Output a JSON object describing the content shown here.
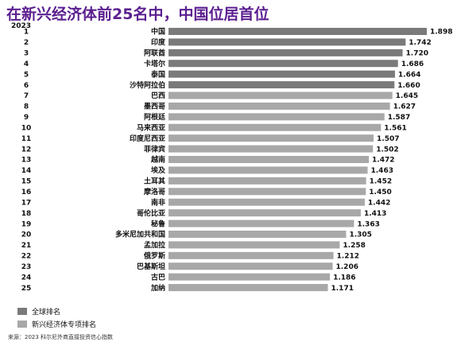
{
  "title": "在新兴经济体前25名中，中国位居首位",
  "year_label": "2023",
  "source": "来源：2023 科尔尼外商直接投资信心指数",
  "legend": [
    {
      "label": "全球排名",
      "color": "#7a7a7a"
    },
    {
      "label": "新兴经济体专项排名",
      "color": "#a8a8a8"
    }
  ],
  "chart_data": {
    "type": "bar",
    "orientation": "horizontal",
    "categories": [
      "中国",
      "印度",
      "阿联酋",
      "卡塔尔",
      "泰国",
      "沙特阿拉伯",
      "巴西",
      "墨西哥",
      "阿根廷",
      "马来西亚",
      "印度尼西亚",
      "菲律宾",
      "越南",
      "埃及",
      "土耳其",
      "摩洛哥",
      "南非",
      "哥伦比亚",
      "秘鲁",
      "多米尼加共和国",
      "孟加拉",
      "俄罗斯",
      "巴基斯坦",
      "古巴",
      "加纳"
    ],
    "ranks": [
      "1",
      "2",
      "3",
      "4",
      "5",
      "6",
      "7",
      "8",
      "9",
      "10",
      "11",
      "12",
      "13",
      "14",
      "15",
      "16",
      "17",
      "18",
      "19",
      "20",
      "21",
      "22",
      "23",
      "24",
      "25"
    ],
    "values": [
      1.898,
      1.742,
      1.72,
      1.686,
      1.664,
      1.66,
      1.645,
      1.627,
      1.587,
      1.561,
      1.507,
      1.502,
      1.472,
      1.463,
      1.452,
      1.45,
      1.442,
      1.413,
      1.363,
      1.305,
      1.258,
      1.212,
      1.206,
      1.186,
      1.171
    ],
    "value_labels": [
      "1.898",
      "1.742",
      "1.720",
      "1.686",
      "1.664",
      "1.660",
      "1.645",
      "1.627",
      "1.587",
      "1.561",
      "1.507",
      "1.502",
      "1.472",
      "1.463",
      "1.452",
      "1.450",
      "1.442",
      "1.413",
      "1.363",
      "1.305",
      "1.258",
      "1.212",
      "1.206",
      "1.186",
      "1.171"
    ],
    "highlight_count": 6,
    "colors": {
      "global": "#7a7a7a",
      "emerging": "#a8a8a8"
    },
    "xlim": [
      0,
      1.898
    ]
  }
}
